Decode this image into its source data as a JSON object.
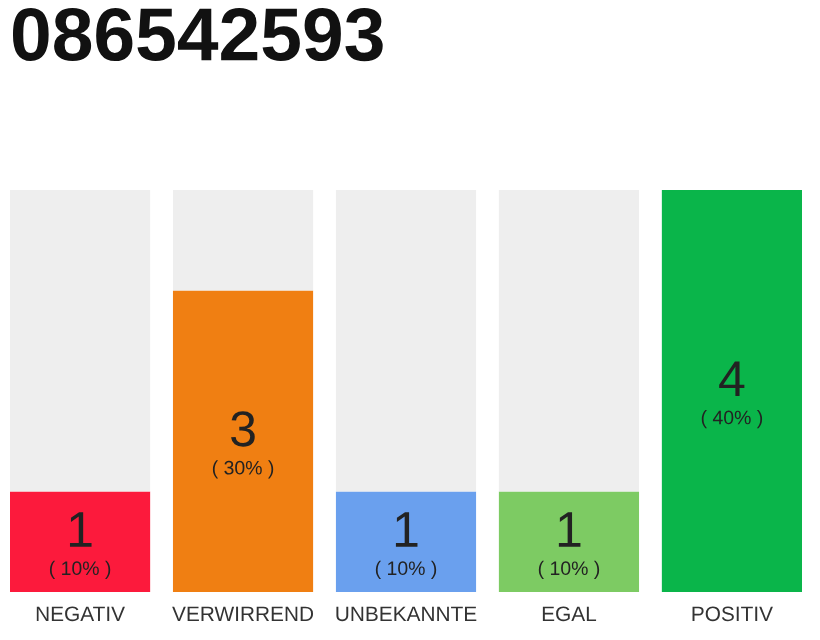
{
  "chart_data": {
    "type": "bar",
    "title": "086542593",
    "stacked": true,
    "categories": [
      "NEGATIV",
      "VERWIRREND",
      "UNBEKANNTE",
      "EGAL",
      "POSITIV"
    ],
    "series": [
      {
        "colors": [
          "#fc1a3c",
          "#f07f12",
          "#6aa0ee",
          "#7dcb63",
          "#0ab54a"
        ],
        "values": [
          1,
          3,
          1,
          1,
          4
        ],
        "value_labels": [
          "1\n( 10% )",
          "3\n( 30% )",
          "1\n( 10% )",
          "1\n( 10% )",
          "4\n( 40% )"
        ]
      },
      {
        "color": "#eeeeee",
        "values": [
          3,
          1,
          3,
          3,
          0
        ]
      }
    ],
    "ylim": [
      0,
      4
    ],
    "tick_labels": "x",
    "grid": false,
    "legend": false
  }
}
